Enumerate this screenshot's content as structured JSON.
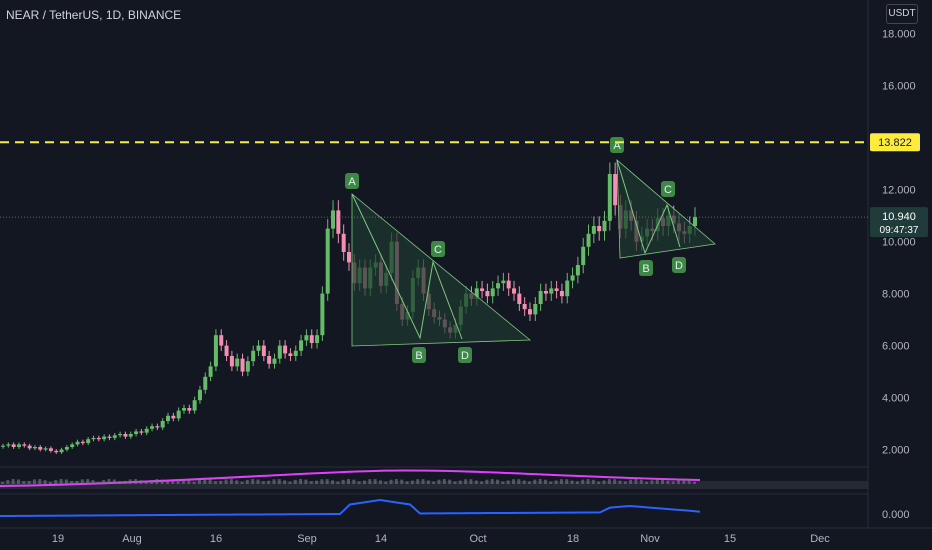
{
  "header": {
    "symbol": "NEAR / TetherUS",
    "interval": "1D",
    "exchange": "BINANCE",
    "unit": "USDT"
  },
  "colors": {
    "bg": "#131722",
    "up": "#26a69a",
    "up_body": "#66bb6a",
    "down": "#f48fb1",
    "level": "#ffeb3b",
    "pattern_fill": "#1e3b2f",
    "pattern_line": "#81c784",
    "ma": "#e040fb",
    "rsi": "#2962ff"
  },
  "chart_data": {
    "type": "candlestick",
    "yaxis": {
      "ylim": [
        1.6,
        18.6
      ],
      "ticks": [
        "18.000",
        "16.000",
        "14.000",
        "12.000",
        "10.000",
        "8.000",
        "6.000",
        "4.000",
        "2.000"
      ]
    },
    "xaxis": {
      "ticks": [
        "19",
        "Aug",
        "16",
        "Sep",
        "14",
        "Oct",
        "18",
        "Nov",
        "15",
        "Dec"
      ]
    },
    "horizontal_level": {
      "value": "13.822"
    },
    "last_price": {
      "value": "10.940",
      "countdown": "09:47:37"
    },
    "lower_pane_tick": "0.000",
    "patterns": [
      {
        "points": [
          {
            "label": "A",
            "value": 11.9
          },
          {
            "label": "B",
            "value": 6.3
          },
          {
            "label": "C",
            "value": 9.4
          },
          {
            "label": "D",
            "value": 6.4
          }
        ]
      },
      {
        "points": [
          {
            "label": "A",
            "value": 13.3
          },
          {
            "label": "B",
            "value": 9.6
          },
          {
            "label": "C",
            "value": 11.4
          },
          {
            "label": "D",
            "value": 9.9
          }
        ]
      }
    ],
    "closes": [
      2.15,
      2.2,
      2.1,
      2.2,
      2.15,
      2.05,
      2.1,
      2.0,
      2.05,
      1.95,
      1.9,
      2.0,
      2.1,
      2.2,
      2.3,
      2.25,
      2.4,
      2.45,
      2.4,
      2.5,
      2.45,
      2.55,
      2.6,
      2.5,
      2.6,
      2.7,
      2.65,
      2.8,
      2.9,
      2.85,
      3.1,
      3.3,
      3.2,
      3.5,
      3.6,
      3.5,
      3.9,
      4.3,
      4.8,
      5.2,
      6.4,
      6.0,
      5.6,
      5.2,
      5.5,
      5.0,
      5.4,
      5.8,
      6.0,
      5.6,
      5.3,
      5.5,
      6.0,
      5.7,
      5.6,
      5.8,
      6.2,
      6.4,
      6.1,
      6.4,
      8.0,
      10.5,
      11.2,
      10.3,
      9.6,
      9.2,
      8.4,
      9.0,
      8.2,
      9.0,
      9.2,
      8.3,
      8.8,
      10.0,
      7.6,
      7.0,
      7.3,
      8.6,
      9.0,
      8.0,
      7.4,
      7.1,
      7.0,
      6.7,
      6.5,
      6.8,
      7.5,
      8.0,
      7.8,
      8.2,
      8.1,
      7.9,
      8.2,
      8.4,
      8.5,
      8.2,
      8.0,
      7.6,
      7.4,
      7.2,
      7.6,
      8.1,
      8.0,
      8.2,
      8.1,
      7.9,
      8.5,
      8.7,
      9.1,
      9.8,
      10.3,
      10.6,
      10.4,
      10.8,
      12.6,
      11.4,
      10.5,
      11.2,
      10.8,
      10.0,
      10.2,
      10.5,
      10.4,
      10.9,
      10.6,
      11.0,
      10.7,
      10.4,
      10.3,
      10.6,
      10.94
    ]
  }
}
